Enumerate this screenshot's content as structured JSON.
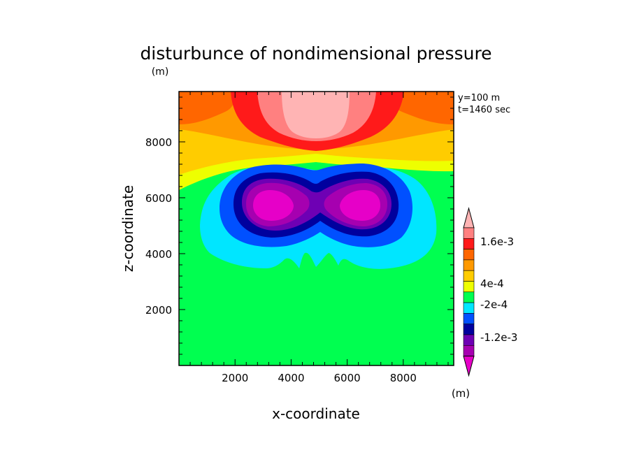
{
  "title": "disturbunce of nondimensional pressure",
  "unit_top": "(m)",
  "unit_colorbar": "(m)",
  "info": {
    "line1": "y=100 m",
    "line2": "t=1460 sec"
  },
  "chart_data": {
    "type": "heatmap",
    "title": "disturbunce of nondimensional pressure",
    "xlabel": "x-coordinate",
    "ylabel": "z-coordinate",
    "xlim": [
      0,
      9800
    ],
    "ylim": [
      0,
      9800
    ],
    "x_ticks": [
      "2000",
      "4000",
      "6000",
      "8000"
    ],
    "y_ticks": [
      "2000",
      "4000",
      "6000",
      "8000"
    ],
    "x_tick_values": [
      2000,
      4000,
      6000,
      8000
    ],
    "y_tick_values": [
      2000,
      4000,
      6000,
      8000
    ],
    "colorbar": {
      "labels": [
        "1.6e-3",
        "4e-4",
        "-2e-4",
        "-1.2e-3"
      ],
      "colors": [
        "#e600c8",
        "#a600b0",
        "#6e00b4",
        "#00009e",
        "#0050ff",
        "#00e6ff",
        "#00ff50",
        "#eeff00",
        "#ffcc00",
        "#ff9900",
        "#ff6600",
        "#ff1a1a",
        "#ff8080",
        "#ffb4b4"
      ]
    }
  }
}
